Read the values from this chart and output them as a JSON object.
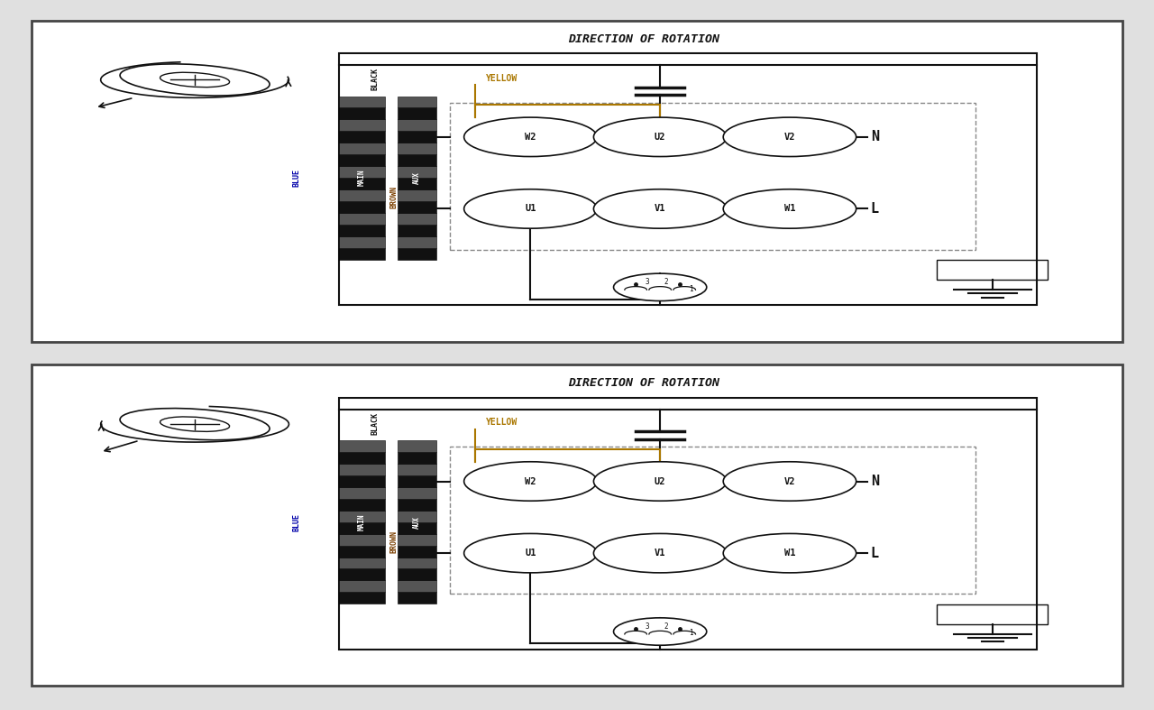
{
  "bg_color": "#e0e0e0",
  "panel_bg": "#ffffff",
  "line_color": "#111111",
  "border_color": "#444444",
  "yellow_color": "#aa7700",
  "blue_color": "#0000aa",
  "brown_color": "#7B3F00",
  "title": "DIRECTION OF ROTATION",
  "top_row_labels": [
    "W2",
    "U2",
    "V2"
  ],
  "bot_row_labels": [
    "U1",
    "V1",
    "W1"
  ],
  "N_label": "N",
  "L_label": "L",
  "MAIN_label": "MAIN",
  "AUX_label": "AUX",
  "BLACK_label": "BLACK",
  "BLUE_label": "BLUE",
  "BROWN_label": "BROWN",
  "YELLOW_label": "YELLOW"
}
